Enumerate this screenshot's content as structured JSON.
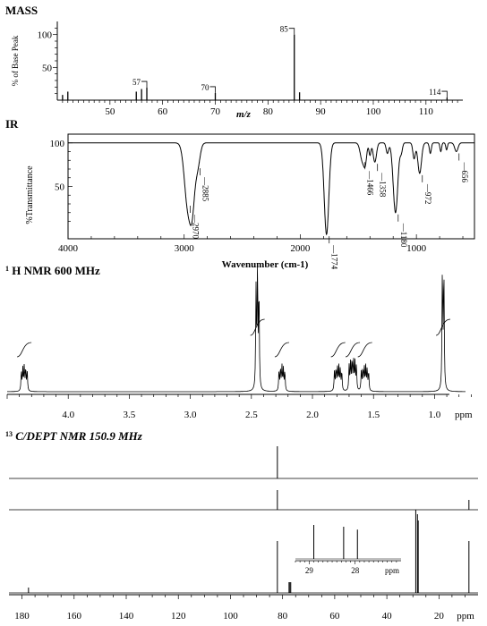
{
  "chart_data": [
    {
      "type": "bar",
      "title": "MASS",
      "xlabel": "m/z",
      "ylabel": "% of Base Peak",
      "xlim": [
        40,
        117
      ],
      "ylim": [
        0,
        120
      ],
      "x_ticks": [
        "50",
        "60",
        "70",
        "80",
        "90",
        "100",
        "110"
      ],
      "y_ticks": [
        "50",
        "100"
      ],
      "peaks": [
        {
          "mz": 41,
          "intensity": 8
        },
        {
          "mz": 42,
          "intensity": 13
        },
        {
          "mz": 55,
          "intensity": 13
        },
        {
          "mz": 56,
          "intensity": 17
        },
        {
          "mz": 57,
          "intensity": 19,
          "label": "57"
        },
        {
          "mz": 70,
          "intensity": 11,
          "label": "70"
        },
        {
          "mz": 85,
          "intensity": 100,
          "label": "85"
        },
        {
          "mz": 86,
          "intensity": 12
        },
        {
          "mz": 114,
          "intensity": 4,
          "label": "114"
        }
      ]
    },
    {
      "type": "line",
      "title": "IR",
      "xlabel": "Wavenumber (cm-1)",
      "ylabel": "%Transmittance",
      "xlim": [
        4000,
        500
      ],
      "ylim": [
        -10,
        110
      ],
      "x_ticks": [
        "4000",
        "3000",
        "2000",
        "1000"
      ],
      "y_ticks": [
        "50",
        "100"
      ],
      "bands": [
        {
          "x": 2970,
          "y": 30,
          "w": 40,
          "label": "2970"
        },
        {
          "x": 2885,
          "y": 73,
          "w": 30,
          "label": "2885"
        },
        {
          "x": 1774,
          "y": -5,
          "w": 28,
          "label": "1774"
        },
        {
          "x": 1466,
          "y": 80,
          "w": 25,
          "label": "1466"
        },
        {
          "x": 1358,
          "y": 78,
          "w": 20,
          "label": "1358"
        },
        {
          "x": 1180,
          "y": 20,
          "w": 28,
          "label": "1180"
        },
        {
          "x": 972,
          "y": 65,
          "w": 22,
          "label": "972"
        },
        {
          "x": 656,
          "y": 90,
          "w": 20,
          "label": "656"
        }
      ]
    },
    {
      "type": "line",
      "title": "H NMR 600 MHz",
      "title_superscript": "1",
      "xlabel": "ppm",
      "xlim": [
        4.5,
        0.6
      ],
      "x_ticks": [
        "4.0",
        "3.5",
        "3.0",
        "2.5",
        "2.0",
        "1.5",
        "1.0"
      ],
      "multiplets": [
        {
          "center": 4.36,
          "lines": 5,
          "spacing": 0.012,
          "height": 0.35
        },
        {
          "center": 2.45,
          "lines": 3,
          "spacing": 0.012,
          "height": 1.7
        },
        {
          "center": 2.25,
          "lines": 5,
          "spacing": 0.012,
          "height": 0.35
        },
        {
          "center": 1.79,
          "lines": 6,
          "spacing": 0.012,
          "height": 0.35
        },
        {
          "center": 1.67,
          "lines": 6,
          "spacing": 0.012,
          "height": 0.45
        },
        {
          "center": 1.57,
          "lines": 6,
          "spacing": 0.012,
          "height": 0.35
        },
        {
          "center": 0.93,
          "lines": 2,
          "spacing": 0.012,
          "height": 2.0
        }
      ]
    },
    {
      "type": "bar",
      "title": "C/DEPT NMR 150.9 MHz",
      "title_superscript": "13",
      "xlabel": "ppm",
      "xlim": [
        185,
        5
      ],
      "x_ticks": [
        "180",
        "160",
        "140",
        "120",
        "100",
        "80",
        "60",
        "40",
        "20"
      ],
      "dept_top": [
        {
          "ppm": 82.0,
          "height": 1.0
        }
      ],
      "dept_middle": [
        {
          "ppm": 82.0,
          "height": 1.0
        },
        {
          "ppm": 8.5,
          "height": 0.5
        }
      ],
      "carbon": [
        {
          "ppm": 177.5,
          "height": 0.06
        },
        {
          "ppm": 82.0,
          "height": 0.58
        },
        {
          "ppm": 77.2,
          "height": 0.12
        },
        {
          "ppm": 28.9,
          "height": 0.93
        },
        {
          "ppm": 28.25,
          "height": 0.88
        },
        {
          "ppm": 27.95,
          "height": 0.81
        },
        {
          "ppm": 8.5,
          "height": 0.58
        }
      ],
      "inset": {
        "xlim": [
          29.3,
          27.0
        ],
        "x_ticks": [
          "29",
          "28"
        ],
        "xlabel": "ppm",
        "peaks": [
          {
            "ppm": 28.9,
            "height": 0.95
          },
          {
            "ppm": 28.25,
            "height": 0.9
          },
          {
            "ppm": 27.95,
            "height": 0.82
          }
        ]
      }
    }
  ]
}
